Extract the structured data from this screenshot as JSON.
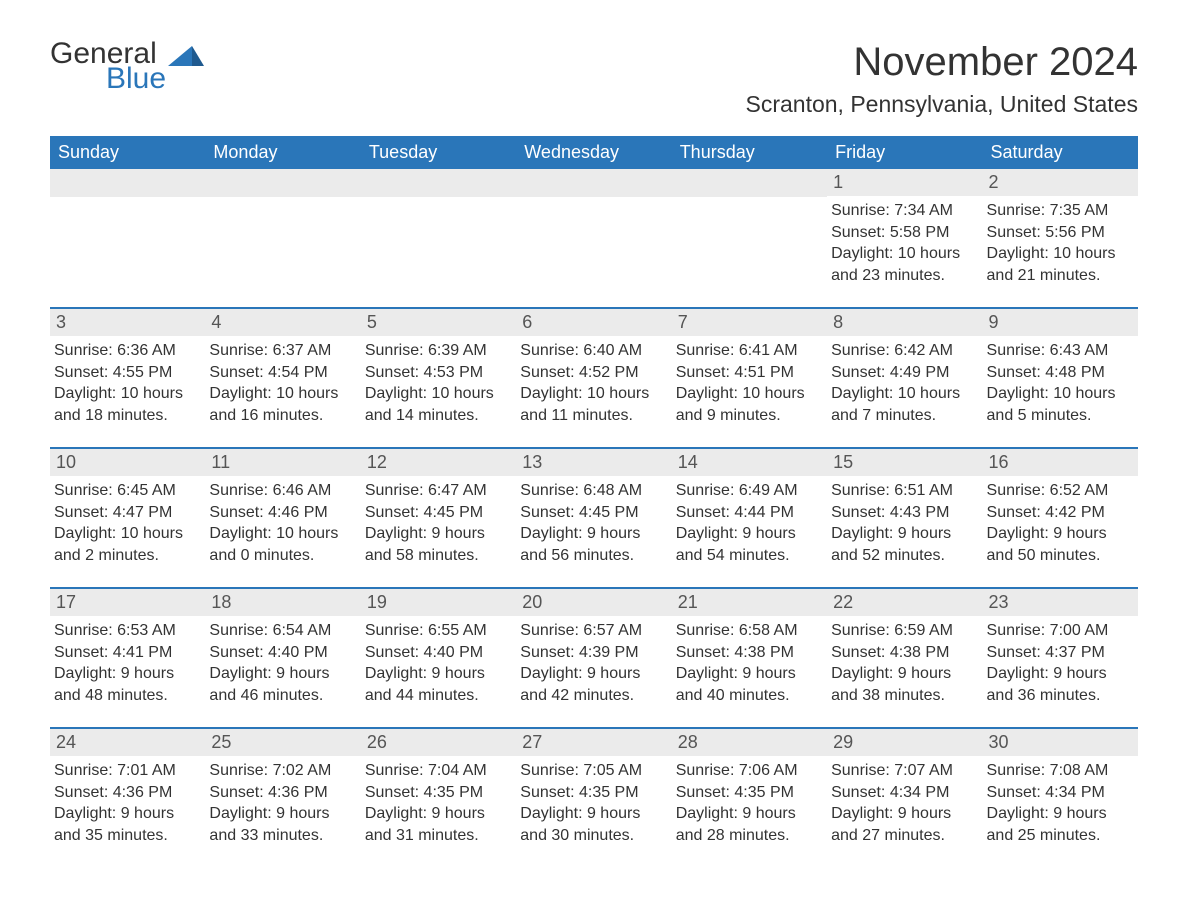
{
  "logo": {
    "general": "General",
    "blue": "Blue"
  },
  "month_title": "November 2024",
  "location": "Scranton, Pennsylvania, United States",
  "weekdays": [
    "Sunday",
    "Monday",
    "Tuesday",
    "Wednesday",
    "Thursday",
    "Friday",
    "Saturday"
  ],
  "colors": {
    "header_bg": "#2a76b9",
    "row_divider": "#2a76b9",
    "daynum_bg": "#ebebeb",
    "text": "#333333"
  },
  "weeks": [
    [
      {
        "empty": true
      },
      {
        "empty": true
      },
      {
        "empty": true
      },
      {
        "empty": true
      },
      {
        "empty": true
      },
      {
        "day": "1",
        "sunrise": "Sunrise: 7:34 AM",
        "sunset": "Sunset: 5:58 PM",
        "daylight1": "Daylight: 10 hours",
        "daylight2": "and 23 minutes."
      },
      {
        "day": "2",
        "sunrise": "Sunrise: 7:35 AM",
        "sunset": "Sunset: 5:56 PM",
        "daylight1": "Daylight: 10 hours",
        "daylight2": "and 21 minutes."
      }
    ],
    [
      {
        "day": "3",
        "sunrise": "Sunrise: 6:36 AM",
        "sunset": "Sunset: 4:55 PM",
        "daylight1": "Daylight: 10 hours",
        "daylight2": "and 18 minutes."
      },
      {
        "day": "4",
        "sunrise": "Sunrise: 6:37 AM",
        "sunset": "Sunset: 4:54 PM",
        "daylight1": "Daylight: 10 hours",
        "daylight2": "and 16 minutes."
      },
      {
        "day": "5",
        "sunrise": "Sunrise: 6:39 AM",
        "sunset": "Sunset: 4:53 PM",
        "daylight1": "Daylight: 10 hours",
        "daylight2": "and 14 minutes."
      },
      {
        "day": "6",
        "sunrise": "Sunrise: 6:40 AM",
        "sunset": "Sunset: 4:52 PM",
        "daylight1": "Daylight: 10 hours",
        "daylight2": "and 11 minutes."
      },
      {
        "day": "7",
        "sunrise": "Sunrise: 6:41 AM",
        "sunset": "Sunset: 4:51 PM",
        "daylight1": "Daylight: 10 hours",
        "daylight2": "and 9 minutes."
      },
      {
        "day": "8",
        "sunrise": "Sunrise: 6:42 AM",
        "sunset": "Sunset: 4:49 PM",
        "daylight1": "Daylight: 10 hours",
        "daylight2": "and 7 minutes."
      },
      {
        "day": "9",
        "sunrise": "Sunrise: 6:43 AM",
        "sunset": "Sunset: 4:48 PM",
        "daylight1": "Daylight: 10 hours",
        "daylight2": "and 5 minutes."
      }
    ],
    [
      {
        "day": "10",
        "sunrise": "Sunrise: 6:45 AM",
        "sunset": "Sunset: 4:47 PM",
        "daylight1": "Daylight: 10 hours",
        "daylight2": "and 2 minutes."
      },
      {
        "day": "11",
        "sunrise": "Sunrise: 6:46 AM",
        "sunset": "Sunset: 4:46 PM",
        "daylight1": "Daylight: 10 hours",
        "daylight2": "and 0 minutes."
      },
      {
        "day": "12",
        "sunrise": "Sunrise: 6:47 AM",
        "sunset": "Sunset: 4:45 PM",
        "daylight1": "Daylight: 9 hours",
        "daylight2": "and 58 minutes."
      },
      {
        "day": "13",
        "sunrise": "Sunrise: 6:48 AM",
        "sunset": "Sunset: 4:45 PM",
        "daylight1": "Daylight: 9 hours",
        "daylight2": "and 56 minutes."
      },
      {
        "day": "14",
        "sunrise": "Sunrise: 6:49 AM",
        "sunset": "Sunset: 4:44 PM",
        "daylight1": "Daylight: 9 hours",
        "daylight2": "and 54 minutes."
      },
      {
        "day": "15",
        "sunrise": "Sunrise: 6:51 AM",
        "sunset": "Sunset: 4:43 PM",
        "daylight1": "Daylight: 9 hours",
        "daylight2": "and 52 minutes."
      },
      {
        "day": "16",
        "sunrise": "Sunrise: 6:52 AM",
        "sunset": "Sunset: 4:42 PM",
        "daylight1": "Daylight: 9 hours",
        "daylight2": "and 50 minutes."
      }
    ],
    [
      {
        "day": "17",
        "sunrise": "Sunrise: 6:53 AM",
        "sunset": "Sunset: 4:41 PM",
        "daylight1": "Daylight: 9 hours",
        "daylight2": "and 48 minutes."
      },
      {
        "day": "18",
        "sunrise": "Sunrise: 6:54 AM",
        "sunset": "Sunset: 4:40 PM",
        "daylight1": "Daylight: 9 hours",
        "daylight2": "and 46 minutes."
      },
      {
        "day": "19",
        "sunrise": "Sunrise: 6:55 AM",
        "sunset": "Sunset: 4:40 PM",
        "daylight1": "Daylight: 9 hours",
        "daylight2": "and 44 minutes."
      },
      {
        "day": "20",
        "sunrise": "Sunrise: 6:57 AM",
        "sunset": "Sunset: 4:39 PM",
        "daylight1": "Daylight: 9 hours",
        "daylight2": "and 42 minutes."
      },
      {
        "day": "21",
        "sunrise": "Sunrise: 6:58 AM",
        "sunset": "Sunset: 4:38 PM",
        "daylight1": "Daylight: 9 hours",
        "daylight2": "and 40 minutes."
      },
      {
        "day": "22",
        "sunrise": "Sunrise: 6:59 AM",
        "sunset": "Sunset: 4:38 PM",
        "daylight1": "Daylight: 9 hours",
        "daylight2": "and 38 minutes."
      },
      {
        "day": "23",
        "sunrise": "Sunrise: 7:00 AM",
        "sunset": "Sunset: 4:37 PM",
        "daylight1": "Daylight: 9 hours",
        "daylight2": "and 36 minutes."
      }
    ],
    [
      {
        "day": "24",
        "sunrise": "Sunrise: 7:01 AM",
        "sunset": "Sunset: 4:36 PM",
        "daylight1": "Daylight: 9 hours",
        "daylight2": "and 35 minutes."
      },
      {
        "day": "25",
        "sunrise": "Sunrise: 7:02 AM",
        "sunset": "Sunset: 4:36 PM",
        "daylight1": "Daylight: 9 hours",
        "daylight2": "and 33 minutes."
      },
      {
        "day": "26",
        "sunrise": "Sunrise: 7:04 AM",
        "sunset": "Sunset: 4:35 PM",
        "daylight1": "Daylight: 9 hours",
        "daylight2": "and 31 minutes."
      },
      {
        "day": "27",
        "sunrise": "Sunrise: 7:05 AM",
        "sunset": "Sunset: 4:35 PM",
        "daylight1": "Daylight: 9 hours",
        "daylight2": "and 30 minutes."
      },
      {
        "day": "28",
        "sunrise": "Sunrise: 7:06 AM",
        "sunset": "Sunset: 4:35 PM",
        "daylight1": "Daylight: 9 hours",
        "daylight2": "and 28 minutes."
      },
      {
        "day": "29",
        "sunrise": "Sunrise: 7:07 AM",
        "sunset": "Sunset: 4:34 PM",
        "daylight1": "Daylight: 9 hours",
        "daylight2": "and 27 minutes."
      },
      {
        "day": "30",
        "sunrise": "Sunrise: 7:08 AM",
        "sunset": "Sunset: 4:34 PM",
        "daylight1": "Daylight: 9 hours",
        "daylight2": "and 25 minutes."
      }
    ]
  ]
}
